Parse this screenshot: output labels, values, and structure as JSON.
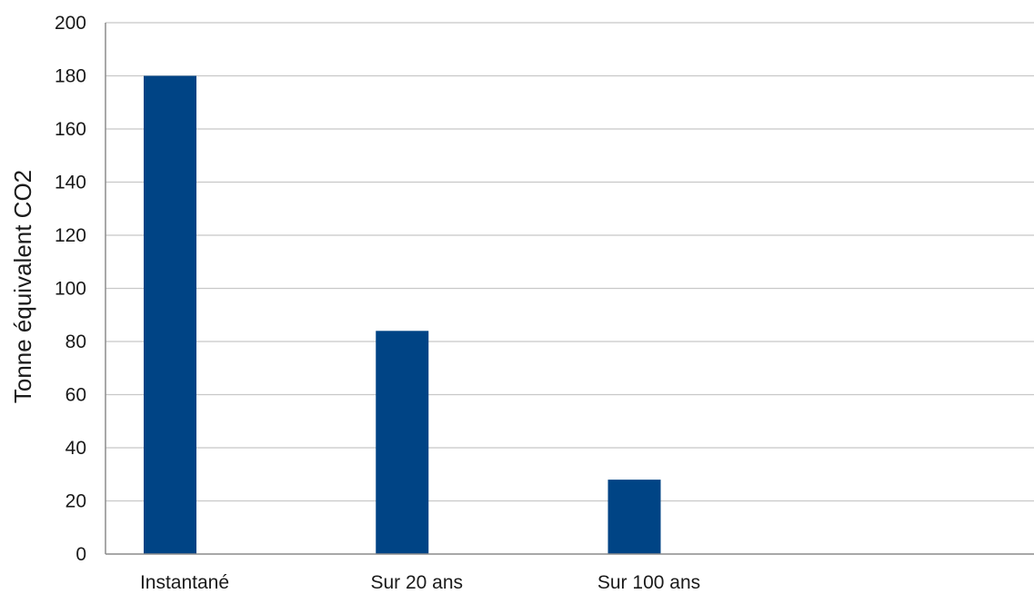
{
  "chart_data": {
    "type": "bar",
    "title": "",
    "xlabel": "",
    "ylabel": "Tonne équivalent CO2",
    "categories": [
      "Instantané",
      "Sur 20 ans",
      "Sur 100 ans",
      ""
    ],
    "series": [
      {
        "values": [
          180,
          84,
          28,
          null
        ],
        "color": "#004485"
      }
    ],
    "ylim": [
      0,
      200
    ],
    "yticks": [
      0,
      20,
      40,
      60,
      80,
      100,
      120,
      140,
      160,
      180,
      200
    ],
    "grid": true,
    "legend": "none"
  }
}
